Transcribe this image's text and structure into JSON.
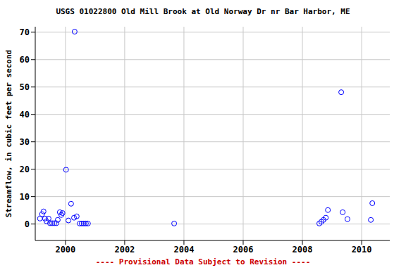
{
  "chart_data": {
    "type": "scatter",
    "title": "USGS 01022800 Old Mill Brook at Old Norway Dr nr Bar Harbor, ME",
    "y_label": "Streamflow, in cubic feet per second",
    "annotation": "---- Provisional Data Subject to Revision ----",
    "x": [
      1999.14,
      1999.21,
      1999.26,
      1999.31,
      1999.36,
      1999.43,
      1999.48,
      1999.55,
      1999.62,
      1999.69,
      1999.74,
      1999.81,
      1999.86,
      1999.9,
      2000.02,
      2000.1,
      2000.19,
      2000.29,
      2000.31,
      2000.38,
      2000.48,
      2000.55,
      2000.62,
      2000.69,
      2000.76,
      2003.67,
      2008.57,
      2008.64,
      2008.71,
      2008.79,
      2008.86,
      2009.31,
      2009.36,
      2009.52,
      2010.31,
      2010.36
    ],
    "values": [
      2.0,
      3.6,
      4.6,
      2.0,
      1.0,
      2.0,
      0.3,
      0.3,
      0.3,
      0.3,
      1.5,
      4.3,
      3.3,
      4.0,
      19.8,
      1.3,
      7.4,
      2.3,
      70.2,
      2.8,
      0.2,
      0.2,
      0.2,
      0.2,
      0.2,
      0.2,
      0.2,
      0.8,
      1.5,
      2.3,
      5.1,
      48.1,
      4.3,
      1.8,
      1.5,
      7.6
    ],
    "color": "#0000ff",
    "marker": "open_circle",
    "xlim": [
      1998.98,
      2010.95
    ],
    "ylim": [
      -6,
      72
    ],
    "xticks": [
      2000,
      2002,
      2004,
      2006,
      2008,
      2010
    ],
    "yticks": [
      0,
      10,
      20,
      30,
      40,
      50,
      60,
      70
    ],
    "grid": true
  }
}
